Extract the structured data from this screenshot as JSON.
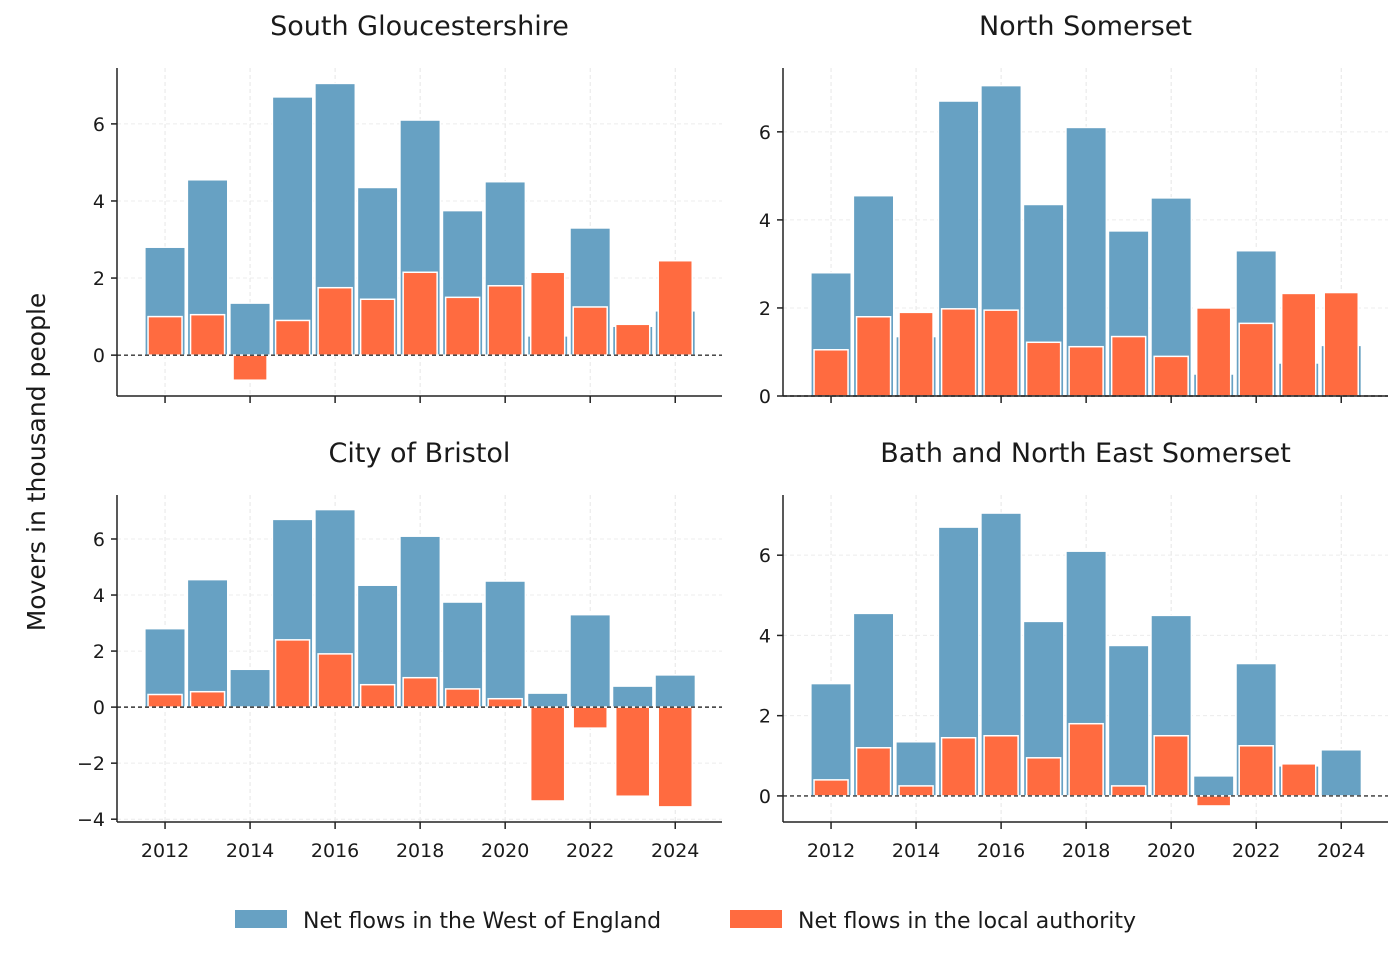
{
  "chart_data": {
    "type": "bar",
    "ylabel": "Movers in thousand people",
    "x": [
      2012,
      2013,
      2014,
      2015,
      2016,
      2017,
      2018,
      2019,
      2020,
      2021,
      2022,
      2023,
      2024
    ],
    "xticks": [
      "2012",
      "2014",
      "2016",
      "2018",
      "2020",
      "2022",
      "2024"
    ],
    "legend": {
      "placement": "bottom-center",
      "entries": [
        "Net flows in the West of England",
        "Net flows in the local authority"
      ]
    },
    "colors": {
      "west_of_england": "#67a1c3",
      "local_authority": "#ff6b40"
    },
    "grid": true,
    "zero_line": "dashed",
    "west_of_england": [
      2.8,
      4.55,
      1.35,
      6.7,
      7.05,
      4.35,
      6.1,
      3.75,
      4.5,
      0.5,
      3.3,
      0.75,
      1.15
    ],
    "panels": [
      {
        "title": "South Gloucestershire",
        "ylim": [
          -1.06,
          7.45
        ],
        "yticks": [
          "0",
          "2",
          "4",
          "6"
        ],
        "local_authority": [
          1.0,
          1.05,
          -0.65,
          0.9,
          1.75,
          1.45,
          2.15,
          1.5,
          1.8,
          2.15,
          1.25,
          0.8,
          2.45
        ]
      },
      {
        "title": "North Somerset",
        "ylim": [
          0,
          7.45
        ],
        "yticks": [
          "0",
          "2",
          "4",
          "6"
        ],
        "local_authority": [
          1.05,
          1.8,
          1.9,
          1.98,
          1.95,
          1.22,
          1.12,
          1.35,
          0.9,
          2.0,
          1.65,
          2.33,
          2.35
        ]
      },
      {
        "title": "City of Bristol",
        "ylim": [
          -4.1,
          7.57
        ],
        "yticks": [
          "−4",
          "−2",
          "0",
          "2",
          "4",
          "6"
        ],
        "local_authority": [
          0.45,
          0.55,
          -0.05,
          2.4,
          1.9,
          0.8,
          1.05,
          0.65,
          0.3,
          -3.35,
          -0.75,
          -3.18,
          -3.56
        ]
      },
      {
        "title": "Bath and North East Somerset",
        "ylim": [
          -0.65,
          7.5
        ],
        "yticks": [
          "0",
          "2",
          "4",
          "6"
        ],
        "local_authority": [
          0.4,
          1.2,
          0.25,
          1.45,
          1.5,
          0.95,
          1.8,
          0.25,
          1.5,
          -0.25,
          1.25,
          0.8,
          0
        ]
      }
    ]
  }
}
